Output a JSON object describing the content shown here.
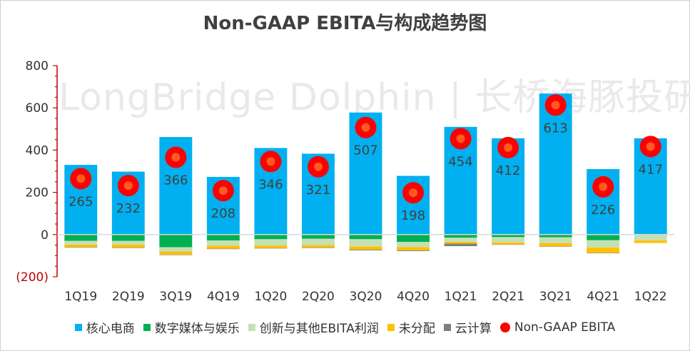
{
  "chart_data": {
    "type": "bar",
    "title": "Non-GAAP EBITA与构成趋势图",
    "watermark": "LongBridge Dolphin | 长桥海豚投研",
    "categories": [
      "1Q19",
      "2Q19",
      "3Q19",
      "4Q19",
      "1Q20",
      "2Q20",
      "3Q20",
      "4Q20",
      "1Q21",
      "2Q21",
      "3Q21",
      "4Q21",
      "1Q22"
    ],
    "ylim": [
      -200,
      800
    ],
    "yticks": [
      -200,
      0,
      200,
      400,
      600,
      800
    ],
    "ytick_labels": [
      "(200)",
      "0",
      "200",
      "400",
      "600",
      "800"
    ],
    "stacked": true,
    "series": [
      {
        "name": "核心电商",
        "color": "#00B0F0",
        "values": [
          330,
          298,
          462,
          273,
          410,
          383,
          578,
          278,
          510,
          456,
          668,
          310,
          456
        ]
      },
      {
        "name": "数字媒体与娱乐",
        "color": "#00B050",
        "values": [
          -30,
          -30,
          -60,
          -28,
          -22,
          -20,
          -22,
          -35,
          -15,
          -12,
          -13,
          -27,
          -3
        ]
      },
      {
        "name": "创新与其他EBITA利润",
        "color": "#C5E0B4",
        "values": [
          -18,
          -18,
          -20,
          -25,
          -30,
          -30,
          -35,
          -25,
          -20,
          -25,
          -28,
          -35,
          -25
        ]
      },
      {
        "name": "未分配",
        "color": "#FFC000",
        "values": [
          -12,
          -14,
          -15,
          -14,
          -12,
          -12,
          -15,
          -15,
          -8,
          -10,
          -15,
          -25,
          -12
        ]
      },
      {
        "name": "云计算",
        "color": "#7F7F7F",
        "values": [
          -2,
          -2,
          -2,
          -2,
          -2,
          -2,
          -3,
          -3,
          -12,
          -1,
          -1,
          -1,
          0
        ]
      }
    ],
    "line_series": {
      "name": "Non-GAAP EBITA",
      "color": "#FF0000",
      "inner_color": "#FF5A1F",
      "values": [
        265,
        232,
        366,
        208,
        346,
        321,
        507,
        198,
        454,
        412,
        613,
        226,
        417
      ],
      "labels": [
        "265",
        "232",
        "366",
        "208",
        "346",
        "321",
        "507",
        "198",
        "454",
        "412",
        "613",
        "226",
        "417"
      ]
    },
    "grid": false,
    "legend_position": "bottom"
  }
}
